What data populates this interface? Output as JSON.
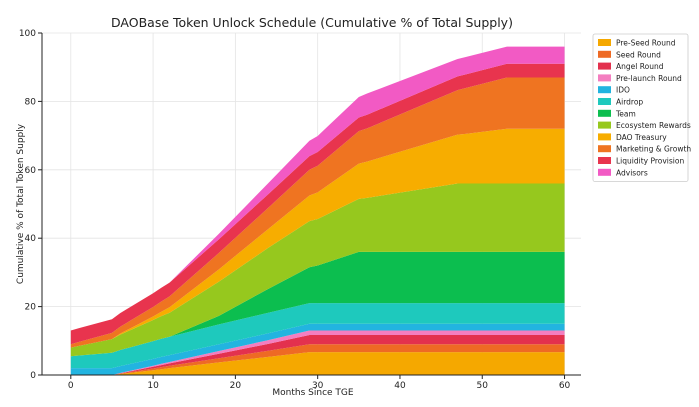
{
  "chart_data": {
    "type": "area",
    "stacked": true,
    "title": "DAOBase Token Unlock Schedule (Cumulative % of Total Supply)",
    "xlabel": "Months Since TGE",
    "ylabel": "Cumulative % of Total Token Supply",
    "xlim": [
      -3.5,
      62
    ],
    "ylim": [
      0,
      100
    ],
    "xticks": [
      0,
      10,
      20,
      30,
      40,
      50,
      60
    ],
    "yticks": [
      0,
      20,
      40,
      60,
      80,
      100
    ],
    "grid": true,
    "legend_position": "right",
    "x": [
      0,
      1,
      5,
      6,
      10,
      11,
      12,
      18,
      24,
      29,
      30,
      35,
      36,
      47,
      48,
      53,
      54,
      60
    ],
    "series": [
      {
        "name": "Pre-Seed Round",
        "color": "#f5a800",
        "values": [
          0,
          0,
          0,
          0.3,
          1.4,
          1.7,
          2.0,
          3.7,
          5.3,
          6.7,
          6.7,
          6.7,
          6.7,
          6.7,
          6.7,
          6.7,
          6.7,
          6.7
        ]
      },
      {
        "name": "Seed Round",
        "color": "#ee6a24",
        "values": [
          0,
          0,
          0,
          0.1,
          0.5,
          0.6,
          0.7,
          1.2,
          1.8,
          2.3,
          2.3,
          2.3,
          2.3,
          2.3,
          2.3,
          2.3,
          2.3,
          2.3
        ]
      },
      {
        "name": "Angel Round",
        "color": "#e3314e",
        "values": [
          0,
          0,
          0,
          0.1,
          0.5,
          0.6,
          0.7,
          1.3,
          2.0,
          2.7,
          2.7,
          2.7,
          2.7,
          2.7,
          2.7,
          2.7,
          2.7,
          2.7
        ]
      },
      {
        "name": "Pre-launch Round",
        "color": "#f47ec0",
        "values": [
          0,
          0,
          0,
          0.1,
          0.3,
          0.4,
          0.4,
          0.8,
          1.1,
          1.3,
          1.3,
          1.3,
          1.3,
          1.3,
          1.3,
          1.3,
          1.3,
          1.3
        ]
      },
      {
        "name": "IDO",
        "color": "#22b4e0",
        "values": [
          2,
          2,
          2,
          2,
          2,
          2,
          2,
          2,
          2,
          2,
          2,
          2,
          2,
          2,
          2,
          2,
          2,
          2
        ]
      },
      {
        "name": "Airdrop",
        "color": "#1ec9bd",
        "values": [
          3.5,
          3.7,
          4.5,
          4.7,
          5.2,
          5.3,
          5.4,
          5.8,
          6.0,
          6.0,
          6.0,
          6.0,
          6.0,
          6.0,
          6.0,
          6.0,
          6.0,
          6.0
        ]
      },
      {
        "name": "Team",
        "color": "#0cbe4f",
        "values": [
          0,
          0,
          0,
          0,
          0,
          0,
          0,
          2.5,
          7.0,
          10.5,
          11.0,
          15.0,
          15.0,
          15.0,
          15.0,
          15.0,
          15.0,
          15.0
        ]
      },
      {
        "name": "Ecosystem Rewards",
        "color": "#96c81e",
        "values": [
          2.5,
          2.8,
          4.0,
          4.5,
          6.2,
          6.6,
          7.0,
          10.0,
          12.0,
          13.5,
          13.6,
          15.5,
          15.8,
          20.0,
          20.0,
          20.0,
          20.0,
          20.0
        ]
      },
      {
        "name": "DAO Treasury",
        "color": "#f7ad00",
        "values": [
          0,
          0,
          0,
          0.3,
          1.0,
          1.3,
          1.6,
          3.6,
          5.5,
          7.5,
          7.8,
          10.3,
          10.6,
          14.3,
          14.5,
          16.0,
          16.0,
          16.0
        ]
      },
      {
        "name": "Marketing & Growth",
        "color": "#ef7421",
        "values": [
          1.0,
          1.2,
          1.8,
          2.0,
          2.8,
          3.0,
          3.2,
          4.8,
          6.2,
          7.5,
          7.8,
          9.5,
          9.7,
          13.0,
          13.4,
          15.0,
          15.0,
          15.0
        ]
      },
      {
        "name": "Liquidity Provision",
        "color": "#e8344e",
        "values": [
          4.0,
          4.0,
          4.0,
          4.0,
          4.0,
          4.0,
          4.0,
          4.0,
          4.0,
          4.0,
          4.0,
          4.0,
          4.0,
          4.0,
          4.0,
          4.0,
          4.0,
          4.0
        ]
      },
      {
        "name": "Advisors",
        "color": "#f25ac4",
        "values": [
          0,
          0,
          0,
          0,
          0,
          0,
          0,
          1.6,
          3.2,
          4.5,
          4.7,
          6.0,
          6.2,
          5.1,
          5.1,
          5.0,
          5.0,
          5.0
        ]
      }
    ]
  }
}
